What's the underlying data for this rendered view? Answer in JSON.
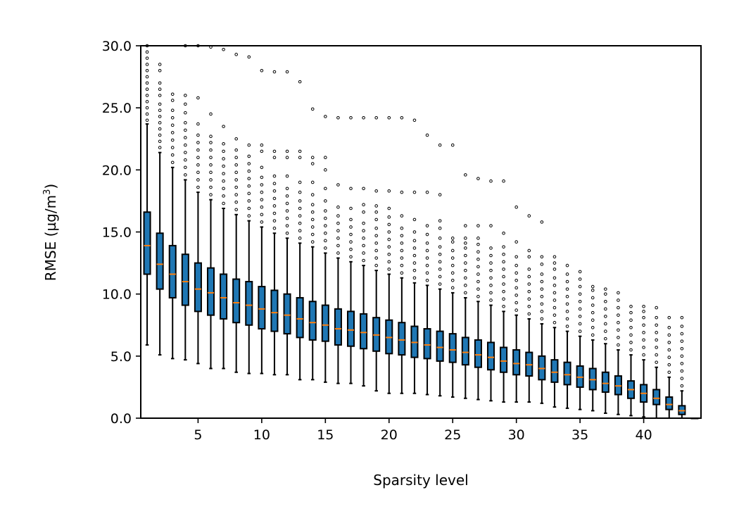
{
  "chart_data": {
    "type": "boxplot",
    "xlabel": "Sparsity level",
    "ylabel_main": "RMSE (µg/m",
    "ylabel_sup": "3",
    "ylabel_end": ")",
    "xlim": [
      0.5,
      44.5
    ],
    "ylim": [
      0.0,
      30.0
    ],
    "xticks": [
      5,
      10,
      15,
      20,
      25,
      30,
      35,
      40
    ],
    "yticks": [
      0.0,
      5.0,
      10.0,
      15.0,
      20.0,
      25.0,
      30.0
    ],
    "ytick_labels": [
      "0.0",
      "5.0",
      "10.0",
      "15.0",
      "20.0",
      "25.0",
      "30.0"
    ],
    "box_color": "#1f77b4",
    "median_color": "#ff7f0e",
    "boxes": [
      {
        "x": 1,
        "whislo": 5.9,
        "q1": 11.6,
        "med": 13.9,
        "q3": 16.6,
        "whishi": 23.7,
        "fliers": [
          24,
          24.5,
          25,
          25.5,
          26,
          26.5,
          27,
          27.5,
          28,
          28.5,
          29,
          29.5,
          30
        ]
      },
      {
        "x": 2,
        "whislo": 5.1,
        "q1": 10.4,
        "med": 12.4,
        "q3": 14.9,
        "whishi": 21.4,
        "fliers": [
          21.8,
          22.3,
          22.8,
          23.3,
          23.8,
          24.3,
          24.8,
          25.3,
          26,
          26.5,
          27,
          28,
          28.5
        ]
      },
      {
        "x": 3,
        "whislo": 4.8,
        "q1": 9.7,
        "med": 11.6,
        "q3": 13.9,
        "whishi": 20.2,
        "fliers": [
          20.6,
          21.2,
          21.8,
          22.4,
          23,
          23.6,
          24.2,
          24.8,
          25.6,
          26.1
        ]
      },
      {
        "x": 4,
        "whislo": 4.7,
        "q1": 9.1,
        "med": 11.0,
        "q3": 13.2,
        "whishi": 19.2,
        "fliers": [
          19.6,
          20.2,
          20.8,
          21.4,
          22,
          22.6,
          23.2,
          23.8,
          24.6,
          25.3,
          26,
          30
        ]
      },
      {
        "x": 5,
        "whislo": 4.4,
        "q1": 8.6,
        "med": 10.4,
        "q3": 12.5,
        "whishi": 18.2,
        "fliers": [
          18.6,
          19.2,
          19.8,
          20.4,
          21,
          21.6,
          22.2,
          22.8,
          23.7,
          25.8,
          30
        ]
      },
      {
        "x": 6,
        "whislo": 4.0,
        "q1": 8.3,
        "med": 10.1,
        "q3": 12.1,
        "whishi": 17.6,
        "fliers": [
          18,
          18.6,
          19.2,
          19.8,
          20.4,
          21,
          21.6,
          22.2,
          22.7,
          24.5,
          29.9
        ]
      },
      {
        "x": 7,
        "whislo": 4.0,
        "q1": 8.0,
        "med": 9.7,
        "q3": 11.6,
        "whishi": 16.9,
        "fliers": [
          17.3,
          17.9,
          18.5,
          19.1,
          19.7,
          20.3,
          20.9,
          21.5,
          22.1,
          23.5,
          29.7
        ]
      },
      {
        "x": 8,
        "whislo": 3.7,
        "q1": 7.7,
        "med": 9.3,
        "q3": 11.2,
        "whishi": 16.4,
        "fliers": [
          16.8,
          17.4,
          18,
          18.6,
          19.2,
          19.8,
          20.4,
          21,
          21.6,
          22.5,
          29.3
        ]
      },
      {
        "x": 9,
        "whislo": 3.6,
        "q1": 7.5,
        "med": 9.1,
        "q3": 11.0,
        "whishi": 15.9,
        "fliers": [
          16.3,
          16.9,
          17.5,
          18.1,
          18.7,
          19.3,
          19.9,
          20.5,
          21.1,
          22,
          29.1
        ]
      },
      {
        "x": 10,
        "whislo": 3.6,
        "q1": 7.2,
        "med": 8.8,
        "q3": 10.6,
        "whishi": 15.4,
        "fliers": [
          15.8,
          16.4,
          17,
          17.6,
          18.2,
          18.8,
          19.4,
          20.2,
          21.5,
          22,
          28
        ]
      },
      {
        "x": 11,
        "whislo": 3.5,
        "q1": 7.0,
        "med": 8.5,
        "q3": 10.3,
        "whishi": 14.9,
        "fliers": [
          15.3,
          15.9,
          16.5,
          17.1,
          17.7,
          18.3,
          18.9,
          19.5,
          21,
          21.5,
          27.9
        ]
      },
      {
        "x": 12,
        "whislo": 3.5,
        "q1": 6.8,
        "med": 8.3,
        "q3": 10.0,
        "whishi": 14.5,
        "fliers": [
          14.9,
          15.5,
          16.1,
          16.7,
          17.3,
          17.9,
          18.5,
          19.5,
          21,
          21.5,
          27.9
        ]
      },
      {
        "x": 13,
        "whislo": 3.1,
        "q1": 6.5,
        "med": 8.0,
        "q3": 9.7,
        "whishi": 14.1,
        "fliers": [
          14.5,
          15.1,
          15.7,
          16.3,
          16.9,
          17.5,
          18.2,
          19,
          21,
          21.5,
          27.1
        ]
      },
      {
        "x": 14,
        "whislo": 3.1,
        "q1": 6.3,
        "med": 7.7,
        "q3": 9.4,
        "whishi": 13.8,
        "fliers": [
          14.2,
          14.8,
          15.4,
          16,
          16.6,
          17.2,
          18,
          19,
          20.5,
          21,
          24.9
        ]
      },
      {
        "x": 15,
        "whislo": 2.9,
        "q1": 6.2,
        "med": 7.5,
        "q3": 9.1,
        "whishi": 13.3,
        "fliers": [
          13.7,
          14.3,
          14.9,
          15.5,
          16.1,
          16.7,
          17.5,
          18.5,
          20,
          21,
          24.3
        ]
      },
      {
        "x": 16,
        "whislo": 2.8,
        "q1": 5.9,
        "med": 7.2,
        "q3": 8.8,
        "whishi": 12.9,
        "fliers": [
          13.3,
          13.9,
          14.5,
          15.1,
          15.7,
          16.3,
          17,
          18.8,
          24.2
        ]
      },
      {
        "x": 17,
        "whislo": 2.8,
        "q1": 5.8,
        "med": 7.1,
        "q3": 8.6,
        "whishi": 12.6,
        "fliers": [
          13,
          13.6,
          14.2,
          14.8,
          15.4,
          16,
          16.9,
          18.5,
          24.2
        ]
      },
      {
        "x": 18,
        "whislo": 2.6,
        "q1": 5.6,
        "med": 6.9,
        "q3": 8.4,
        "whishi": 12.3,
        "fliers": [
          12.7,
          13.3,
          13.9,
          14.5,
          15.1,
          15.7,
          16.6,
          17.2,
          18.5,
          24.2
        ]
      },
      {
        "x": 19,
        "whislo": 2.2,
        "q1": 5.4,
        "med": 6.7,
        "q3": 8.1,
        "whishi": 11.9,
        "fliers": [
          12.3,
          12.9,
          13.5,
          14.1,
          14.7,
          15.3,
          16,
          16.6,
          17.1,
          18.3,
          24.2
        ]
      },
      {
        "x": 20,
        "whislo": 2.0,
        "q1": 5.2,
        "med": 6.5,
        "q3": 7.9,
        "whishi": 11.6,
        "fliers": [
          12,
          12.6,
          13.2,
          13.8,
          14.4,
          15,
          15.6,
          16.2,
          16.9,
          18.3,
          24.2
        ]
      },
      {
        "x": 21,
        "whislo": 2.0,
        "q1": 5.1,
        "med": 6.3,
        "q3": 7.7,
        "whishi": 11.3,
        "fliers": [
          11.7,
          12.3,
          12.9,
          13.5,
          14.1,
          14.7,
          15.3,
          16.3,
          18.2,
          24.2
        ]
      },
      {
        "x": 22,
        "whislo": 2.0,
        "q1": 4.9,
        "med": 6.1,
        "q3": 7.4,
        "whishi": 10.9,
        "fliers": [
          11.3,
          11.9,
          12.5,
          13.1,
          13.7,
          14.3,
          15,
          16,
          18.2,
          24
        ]
      },
      {
        "x": 23,
        "whislo": 1.9,
        "q1": 4.8,
        "med": 5.9,
        "q3": 7.2,
        "whishi": 10.7,
        "fliers": [
          11.1,
          11.7,
          12.3,
          12.9,
          13.5,
          14.1,
          14.8,
          15.5,
          18.2,
          22.8
        ]
      },
      {
        "x": 24,
        "whislo": 1.8,
        "q1": 4.6,
        "med": 5.7,
        "q3": 7.0,
        "whishi": 10.4,
        "fliers": [
          10.8,
          11.4,
          12,
          12.6,
          13.2,
          13.8,
          14.5,
          15.3,
          15.9,
          18,
          22
        ]
      },
      {
        "x": 25,
        "whislo": 1.7,
        "q1": 4.5,
        "med": 5.5,
        "q3": 6.8,
        "whishi": 10.1,
        "fliers": [
          10.5,
          11.1,
          11.7,
          12.3,
          12.9,
          13.5,
          14.2,
          14.5,
          22
        ]
      },
      {
        "x": 26,
        "whislo": 1.6,
        "q1": 4.3,
        "med": 5.3,
        "q3": 6.5,
        "whishi": 9.7,
        "fliers": [
          10.1,
          10.7,
          11.3,
          11.9,
          12.5,
          13.1,
          13.7,
          14.1,
          14.5,
          15.5,
          19.6
        ]
      },
      {
        "x": 27,
        "whislo": 1.5,
        "q1": 4.1,
        "med": 5.1,
        "q3": 6.3,
        "whishi": 9.4,
        "fliers": [
          9.8,
          10.4,
          11,
          11.6,
          12.2,
          12.8,
          13.4,
          14,
          14.5,
          15.5,
          19.3
        ]
      },
      {
        "x": 28,
        "whislo": 1.4,
        "q1": 3.9,
        "med": 4.9,
        "q3": 6.1,
        "whishi": 9.1,
        "fliers": [
          9.5,
          10.1,
          10.7,
          11.3,
          11.9,
          12.5,
          13.1,
          13.7,
          15.5,
          19.1
        ]
      },
      {
        "x": 29,
        "whislo": 1.3,
        "q1": 3.7,
        "med": 4.6,
        "q3": 5.7,
        "whishi": 8.6,
        "fliers": [
          9,
          9.6,
          10.2,
          10.8,
          11.4,
          12,
          12.6,
          13.2,
          13.8,
          14.9,
          19.1
        ]
      },
      {
        "x": 30,
        "whislo": 1.3,
        "q1": 3.5,
        "med": 4.4,
        "q3": 5.5,
        "whishi": 8.3,
        "fliers": [
          8.7,
          9.3,
          9.9,
          10.5,
          11.1,
          11.7,
          12.3,
          13,
          14.2,
          17
        ]
      },
      {
        "x": 31,
        "whislo": 1.3,
        "q1": 3.4,
        "med": 4.3,
        "q3": 5.3,
        "whishi": 8.0,
        "fliers": [
          8.4,
          9,
          9.6,
          10.2,
          10.8,
          11.4,
          12,
          13,
          13.5,
          16.3
        ]
      },
      {
        "x": 32,
        "whislo": 1.2,
        "q1": 3.1,
        "med": 4.0,
        "q3": 5.0,
        "whishi": 7.6,
        "fliers": [
          8,
          8.6,
          9.2,
          9.8,
          10.4,
          11,
          11.6,
          12.4,
          13,
          15.8
        ]
      },
      {
        "x": 33,
        "whislo": 0.9,
        "q1": 2.9,
        "med": 3.7,
        "q3": 4.7,
        "whishi": 7.3,
        "fliers": [
          7.7,
          8.3,
          8.9,
          9.5,
          10.1,
          10.7,
          11.3,
          12,
          12.5,
          13
        ]
      },
      {
        "x": 34,
        "whislo": 0.8,
        "q1": 2.7,
        "med": 3.5,
        "q3": 4.5,
        "whishi": 7.0,
        "fliers": [
          7.4,
          8,
          8.6,
          9.2,
          9.8,
          10.4,
          11,
          11.6,
          12.3
        ]
      },
      {
        "x": 35,
        "whislo": 0.7,
        "q1": 2.5,
        "med": 3.3,
        "q3": 4.2,
        "whishi": 6.6,
        "fliers": [
          7,
          7.6,
          8.2,
          8.8,
          9.4,
          10,
          10.6,
          11.2,
          11.8
        ]
      },
      {
        "x": 36,
        "whislo": 0.6,
        "q1": 2.3,
        "med": 3.1,
        "q3": 4.0,
        "whishi": 6.3,
        "fliers": [
          6.7,
          7.3,
          7.9,
          8.5,
          9.1,
          9.7,
          10.3,
          10.6
        ]
      },
      {
        "x": 37,
        "whislo": 0.4,
        "q1": 2.1,
        "med": 2.8,
        "q3": 3.7,
        "whishi": 6.0,
        "fliers": [
          6.4,
          7,
          7.6,
          8.2,
          8.8,
          9.4,
          10,
          10.4
        ]
      },
      {
        "x": 38,
        "whislo": 0.3,
        "q1": 1.9,
        "med": 2.6,
        "q3": 3.4,
        "whishi": 5.5,
        "fliers": [
          5.9,
          6.5,
          7.1,
          7.7,
          8.3,
          8.9,
          9.5,
          10.1
        ]
      },
      {
        "x": 39,
        "whislo": 0.2,
        "q1": 1.6,
        "med": 2.3,
        "q3": 3.0,
        "whishi": 5.1,
        "fliers": [
          5.5,
          6.1,
          6.7,
          7.3,
          7.9,
          8.5,
          9
        ]
      },
      {
        "x": 40,
        "whislo": 0.1,
        "q1": 1.3,
        "med": 2.0,
        "q3": 2.7,
        "whishi": 4.7,
        "fliers": [
          5.1,
          5.7,
          6.3,
          6.9,
          7.5,
          8.1,
          8.6,
          9
        ]
      },
      {
        "x": 41,
        "whislo": 0.0,
        "q1": 1.1,
        "med": 1.6,
        "q3": 2.3,
        "whishi": 4.1,
        "fliers": [
          4.5,
          5.1,
          5.7,
          6.3,
          6.9,
          7.5,
          8.1,
          8.9
        ]
      },
      {
        "x": 42,
        "whislo": 0.0,
        "q1": 0.7,
        "med": 1.1,
        "q3": 1.7,
        "whishi": 3.3,
        "fliers": [
          3.7,
          4.3,
          4.9,
          5.5,
          6.1,
          6.7,
          7.3,
          8.1
        ]
      },
      {
        "x": 43,
        "whislo": 0.0,
        "q1": 0.3,
        "med": 0.6,
        "q3": 1.0,
        "whishi": 2.2,
        "fliers": [
          2.6,
          3.2,
          3.8,
          4.4,
          5,
          5.6,
          6.2,
          6.8,
          7.4,
          8.1
        ]
      },
      {
        "x": 44,
        "whislo": 0.0,
        "q1": 0.0,
        "med": 0.0,
        "q3": 0.0,
        "whishi": 0.0,
        "fliers": []
      }
    ]
  }
}
